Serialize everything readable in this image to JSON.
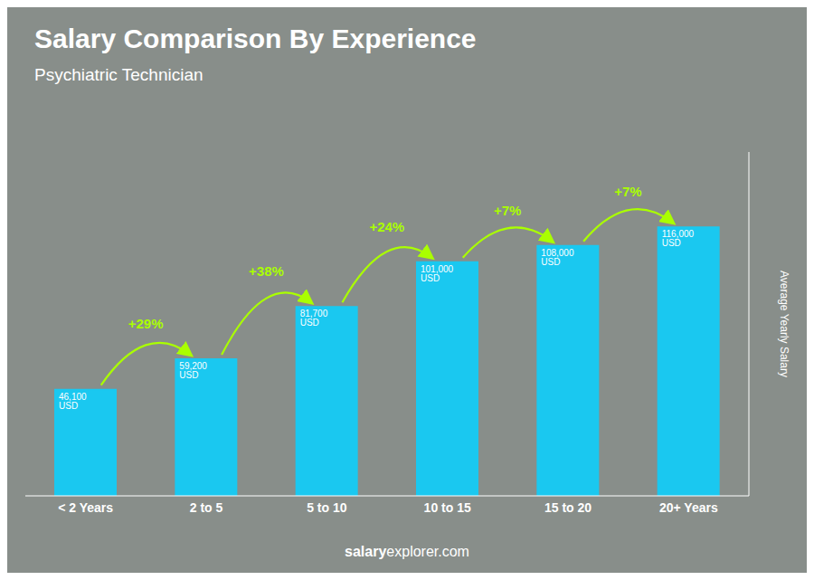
{
  "chart_data": {
    "type": "bar",
    "title": "Salary Comparison By Experience",
    "subtitle": "Psychiatric Technician",
    "categories": [
      "< 2 Years",
      "2 to 5",
      "5 to 10",
      "10 to 15",
      "15 to 20",
      "20+ Years"
    ],
    "values": [
      46100,
      59200,
      81700,
      101000,
      108000,
      116000
    ],
    "value_labels": [
      "46,100 USD",
      "59,200 USD",
      "81,700 USD",
      "101,000 USD",
      "108,000 USD",
      "116,000 USD"
    ],
    "data_labels": true,
    "color": "#1ac8f0",
    "ylabel": "Average Yearly Salary",
    "ylim": [
      0,
      148000
    ],
    "tick_labels": "x",
    "annotations": [
      {
        "text": "+29%",
        "from": "< 2 Years",
        "to": "2 to 5"
      },
      {
        "text": "+38%",
        "from": "2 to 5",
        "to": "5 to 10"
      },
      {
        "text": "+24%",
        "from": "5 to 10",
        "to": "10 to 15"
      },
      {
        "text": "+7%",
        "from": "10 to 15",
        "to": "15 to 20"
      },
      {
        "text": "+7%",
        "from": "15 to 20",
        "to": "20+ Years"
      },
      {
        "text": "salary"
      },
      {
        "text": "explorer.com"
      }
    ]
  }
}
